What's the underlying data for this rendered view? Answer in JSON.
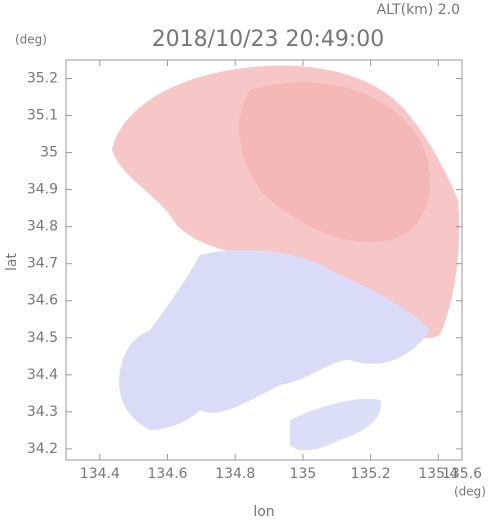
{
  "chart_data": {
    "type": "radar-image",
    "title": "2018/10/23 20:49:00",
    "subtitle": "ALT(km) 2.0",
    "x_label": "lon",
    "y_label": "lat",
    "x_unit": "(deg)",
    "y_unit": "(deg)",
    "xlim": [
      134.3,
      135.47
    ],
    "ylim": [
      34.17,
      35.25
    ],
    "xticks": [
      134.4,
      134.6,
      134.8,
      135.0,
      135.2,
      135.4,
      135.6
    ],
    "yticks": [
      34.2,
      34.3,
      34.4,
      34.5,
      34.6,
      34.7,
      34.8,
      34.9,
      35.0,
      35.1,
      35.2
    ]
  }
}
